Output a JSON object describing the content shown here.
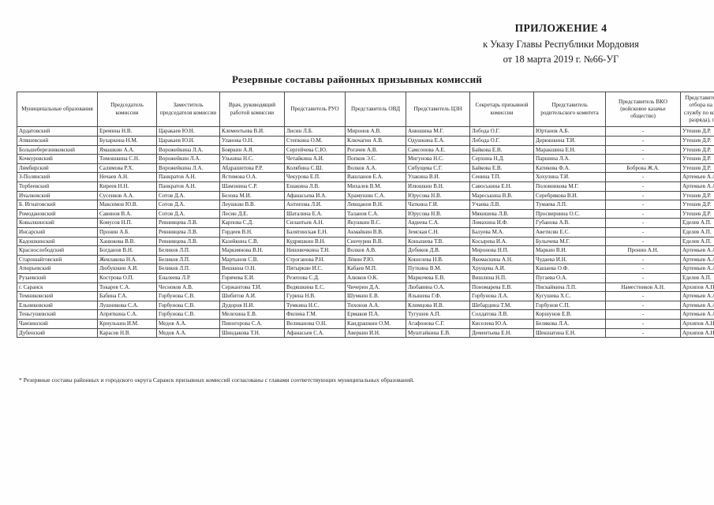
{
  "document": {
    "appendix_label": "ПРИЛОЖЕНИЕ 4",
    "decree_line": "к  Указу Главы Республики Мордовия",
    "date_line": "от 18  марта 2019 г. №66-УГ",
    "title": "Резервные составы районных призывных комиссий",
    "footnote": "* Резервные составы районных и городского округа Саранск призывных комиссий согласованы с главами соответствующих муниципальных образований."
  },
  "table": {
    "columns": [
      "Муниципальные образования",
      "Председатель комиссии",
      "Заместитель председателя комиссии",
      "Врач, руководящий работой комиссии",
      "Представитель РУО",
      "Представитель ОВД",
      "Представитель ЦЗН",
      "Секретарь призывной комиссии",
      "Представитель родительского комитета",
      "Представитель ВКО (войсковое казачье общество)",
      "Представитель пункта отбора на военную службу по контракту (3 разряда), г.Саранск"
    ],
    "rows": [
      [
        "Ардатовский",
        "Еремина Н.В.",
        "Царакаев Ю.Н.",
        "Клементьева В.И.",
        "Лисин Л.Б.",
        "Миронов А.В.",
        "Анюшина М.Г.",
        "Лобода О.Г.",
        "Юртанов А.Б.",
        "-",
        "Утешев Д.Р."
      ],
      [
        "Атяшевский",
        "Бухаркина Н.М.",
        "Царакаев Ю.Н.",
        "Уланова О.Н.",
        "Степкина О.М.",
        "Ключагин А.В.",
        "Одушкина Е.А.",
        "Лобода О.Г.",
        "Дерюшкина Т.И.",
        "-",
        "Утешев Д.Р."
      ],
      [
        "Большеберезниковский",
        "Ямашкин А.А.",
        "Ворожейкина Л.А.",
        "Бояркин А.Я.",
        "Сергейчева С.Ю.",
        "Рогачев А.В.",
        "Самсонова А.Е.",
        "Байкова Е.В.",
        "Маракшина Е.Н.",
        "-",
        "Утешев Д.Р."
      ],
      [
        "Кочкуровский",
        "Тимошкина С.Н.",
        "Ворожейкин Л.А.",
        "Улькина Н.С.",
        "Четайкина А.И.",
        "Попков Э.С.",
        "Мигунова Н.С.",
        "Серхина Н.Д.",
        "Паршина Л.А.",
        "-",
        "Утешев Д.Р."
      ],
      [
        "Лямбирский",
        "Салимова Р.Х.",
        "Ворожейкина Л.А.",
        "Абдрашитова Р.Р.",
        "Колябина С.Ш.",
        "Волков А.А.",
        "Сибущева С.Г.",
        "Байкова Е.В.",
        "Катикова Ф.А.",
        "Боброва Ж.А.",
        "Утешев Д.Р."
      ],
      [
        "З-Полянский",
        "Нечаев А.Н.",
        "Панкратов А.Н.",
        "Ястимова О.А.",
        "Чекурова Е.П.",
        "Вашланов Е.А.",
        "Улакина В.И.",
        "Сенина Т.П.",
        "Хохулина Т.И.",
        "-",
        "Артемьев А.А."
      ],
      [
        "Торбеевский",
        "Киреев Н.Н.",
        "Панкратов А.Н.",
        "Шамзнина С.Р.",
        "Ешакина Л.В.",
        "Михалев В.М.",
        "Илюшкин В.Н.",
        "Савоськина Е.Н.",
        "Половникова М.Г.",
        "-",
        "Артемьев А.А."
      ],
      [
        "Ичалковский",
        "Сусенков А.А.",
        "Сотов Д.А.",
        "Белова М.И.",
        "Афанасьева И.А.",
        "Храмушин С.А.",
        "Юрусова Н.В.",
        "Мареськина В.В.",
        "Серебрякова В.И.",
        "-",
        "Утешев Д.Р."
      ],
      [
        "Б. Игнатовский",
        "Максимов Ю.В.",
        "Сотов Д.А.",
        "Леушкин В.В.",
        "Антипова Л.И.",
        "Левщанов В.Н.",
        "Чаткина Г.И.",
        "Учаева Л.В.",
        "Тумаева Л.П.",
        "-",
        "Утешев Д.Р."
      ],
      [
        "Ромодановский",
        "Савинов В.А.",
        "Сотов Д.А.",
        "Лесин Д.Е.",
        "Шаталина Е.А.",
        "Таланов С.А.",
        "Юрусова Н.В.",
        "Мякишева Л.В.",
        "Просвирнина О.С.",
        "-",
        "Утешев Д.Р."
      ],
      [
        "Ковылкинский",
        "Комусов Н.П.",
        "Ревнивцева Л.В.",
        "Карпова С.Д.",
        "Силантьев А.Н.",
        "Якушкин В.С.",
        "Авдеева С.А.",
        "Ломахина И.Ф.",
        "Губанова А.В.",
        "-",
        "Еделев А.П."
      ],
      [
        "Инсарский",
        "Пронин А.Б.",
        "Ревнивцева Л.В.",
        "Гордеев В.Н.",
        "Балятинская Е.Н.",
        "Акмайкин В.В.",
        "Земская С.Н.",
        "Балуева М.А.",
        "Аветисян Е.С.",
        "-",
        "Еделев А.П."
      ],
      [
        "Кадошкинский",
        "Ханюкова В.В.",
        "Ревнивцева Л.В.",
        "Казейкина С.В.",
        "Кудряшкин В.Н.",
        "Синчурин В.В.",
        "Конышева Т.В.",
        "Косырева И.А.",
        "Булычева М.Г.",
        "-",
        "Еделев А.П."
      ],
      [
        "Краснослободский",
        "Богданов В.Н.",
        "Беликов Л.П.",
        "Маркиянова В.Н.",
        "Нишнючкина Т.Н.",
        "Волков А.В.",
        "Добиков Д.В.",
        "Миронова Н.П.",
        "Маркин В.И.",
        "Пронин А.Н.",
        "Артемьев А.А."
      ],
      [
        "Старошайговский",
        "Жевлакова Н.А.",
        "Беликов Л.П.",
        "Мартынов С.В.",
        "Строганова Р.Н.",
        "Лёвин Р.Ю.",
        "Кошелева Н.В.",
        "Якомаскина А.Н.",
        "Чудаева И.Н.",
        "-",
        "Артемьев А.А."
      ],
      [
        "Атюрьевский",
        "Любушкин А.И.",
        "Беликов Л.П.",
        "Вешкина О.Н.",
        "Пятыркин И.С.",
        "Кабаев М.П.",
        "Путкина В.М.",
        "Хрущева А.И.",
        "Кашаева О.Ф.",
        "-",
        "Артемьев А.А."
      ],
      [
        "Рузаевский",
        "Кострова О.П.",
        "Еналеева Л.Р.",
        "Горячева Е.И.",
        "Резепова С.Д.",
        "Алюков О.К.",
        "Маркочева Е.В.",
        "Вишлина Н.П.",
        "Пугаева О.А.",
        "-",
        "Еделев А.П."
      ],
      [
        "г. Саранск",
        "Токарев С.А.",
        "Чесноков А.В.",
        "Сержантова Т.И.",
        "Ведяшкина Е.С.",
        "Чичерин Д.А.",
        "Любавина О.А.",
        "Пономарева Е.В.",
        "Пискайкина Л.П.",
        "Наместников А.Н.",
        "Архипов А.Н."
      ],
      [
        "Темниковский",
        "Бабина Г.А.",
        "Горбунова С.В.",
        "Шибитов А.И.",
        "Гурина Н.В.",
        "Шумкин Е.В.",
        "Ялышева Г.Ф.",
        "Горбунова Л.А.",
        "Кугушева Х.С.",
        "-",
        "Артемьев А.А."
      ],
      [
        "Ельниковский",
        "Лушникова С.А.",
        "Горбунова С.В.",
        "Дудоров Н.И.",
        "Тумкина Н.С.",
        "Тихонов А.А.",
        "Климцова И.В.",
        "Шебардина Т.М.",
        "Горбунов С.П.",
        "-",
        "Артемьев А.А."
      ],
      [
        "Теньгушевский",
        "Апряткина С.А.",
        "Горбунова С.В.",
        "Мелехина Е.В.",
        "Филина Г.М.",
        "Ермаков П.А.",
        "Тугушев А.П.",
        "Солдатова Л.В.",
        "Коршунов Е.В.",
        "-",
        "Артемьев А.А."
      ],
      [
        "Чамзинский",
        "Криулькин И.М.",
        "Медов А.А.",
        "Пиногорова С.А.",
        "Великанова О.Н.",
        "Кандрашкин О.М.",
        "Агафонова С.Г.",
        "Киселева Ю.А.",
        "Белякова Л.А.",
        "-",
        "Архипов А.Н."
      ],
      [
        "Дубенский",
        "Карасев Н.В.",
        "Медов А.А.",
        "Шиндакова Т.Н.",
        "Афанасьев С.А.",
        "Аверкин И.Н.",
        "Муштайкина Е.В.",
        "Дементьева Е.Н.",
        "Шекшатина Е.Н.",
        "-",
        "Архипов А.Н."
      ]
    ]
  }
}
